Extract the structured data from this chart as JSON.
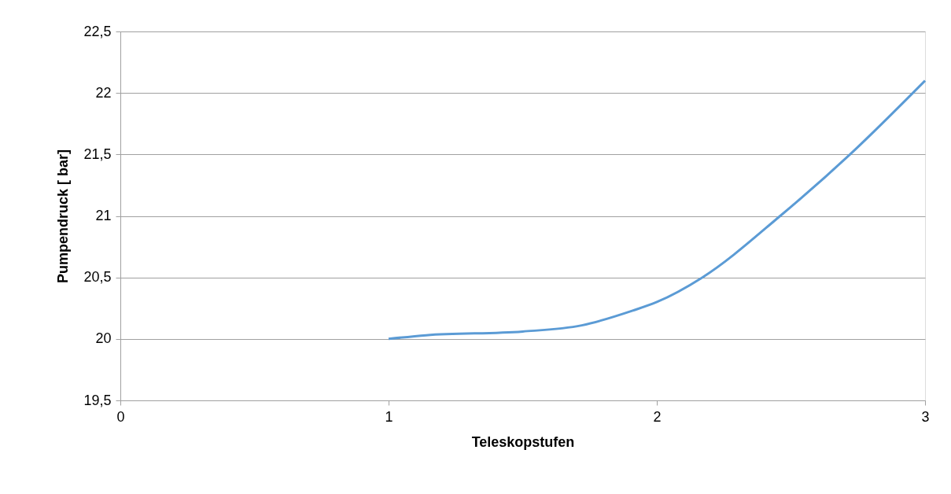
{
  "chart_data": {
    "type": "line",
    "xlabel": "Teleskopstufen",
    "ylabel": "Pumpendruck [ bar]",
    "x": [
      1,
      1.14,
      1.5,
      1.72,
      1.91,
      2,
      2.17,
      2.46,
      2.72,
      3
    ],
    "series": [
      {
        "color": "#5b9bd5",
        "values": [
          20,
          20.03,
          20.06,
          20.11,
          20.23,
          20.3,
          20.5,
          21.0,
          21.5,
          22.1
        ]
      }
    ],
    "xlim": [
      0,
      3
    ],
    "xticks": [
      0,
      1,
      2,
      3
    ],
    "ylim": [
      19.5,
      22.5
    ],
    "yticks": [
      {
        "value": 19.5,
        "label": "19,5"
      },
      20,
      {
        "value": 20.5,
        "label": "20,5"
      },
      21,
      {
        "value": 21.5,
        "label": "21,5"
      },
      22,
      {
        "value": 22.5,
        "label": "22,5"
      }
    ],
    "grid": "y",
    "legend": false,
    "marker": "none",
    "line_style": "solid"
  }
}
